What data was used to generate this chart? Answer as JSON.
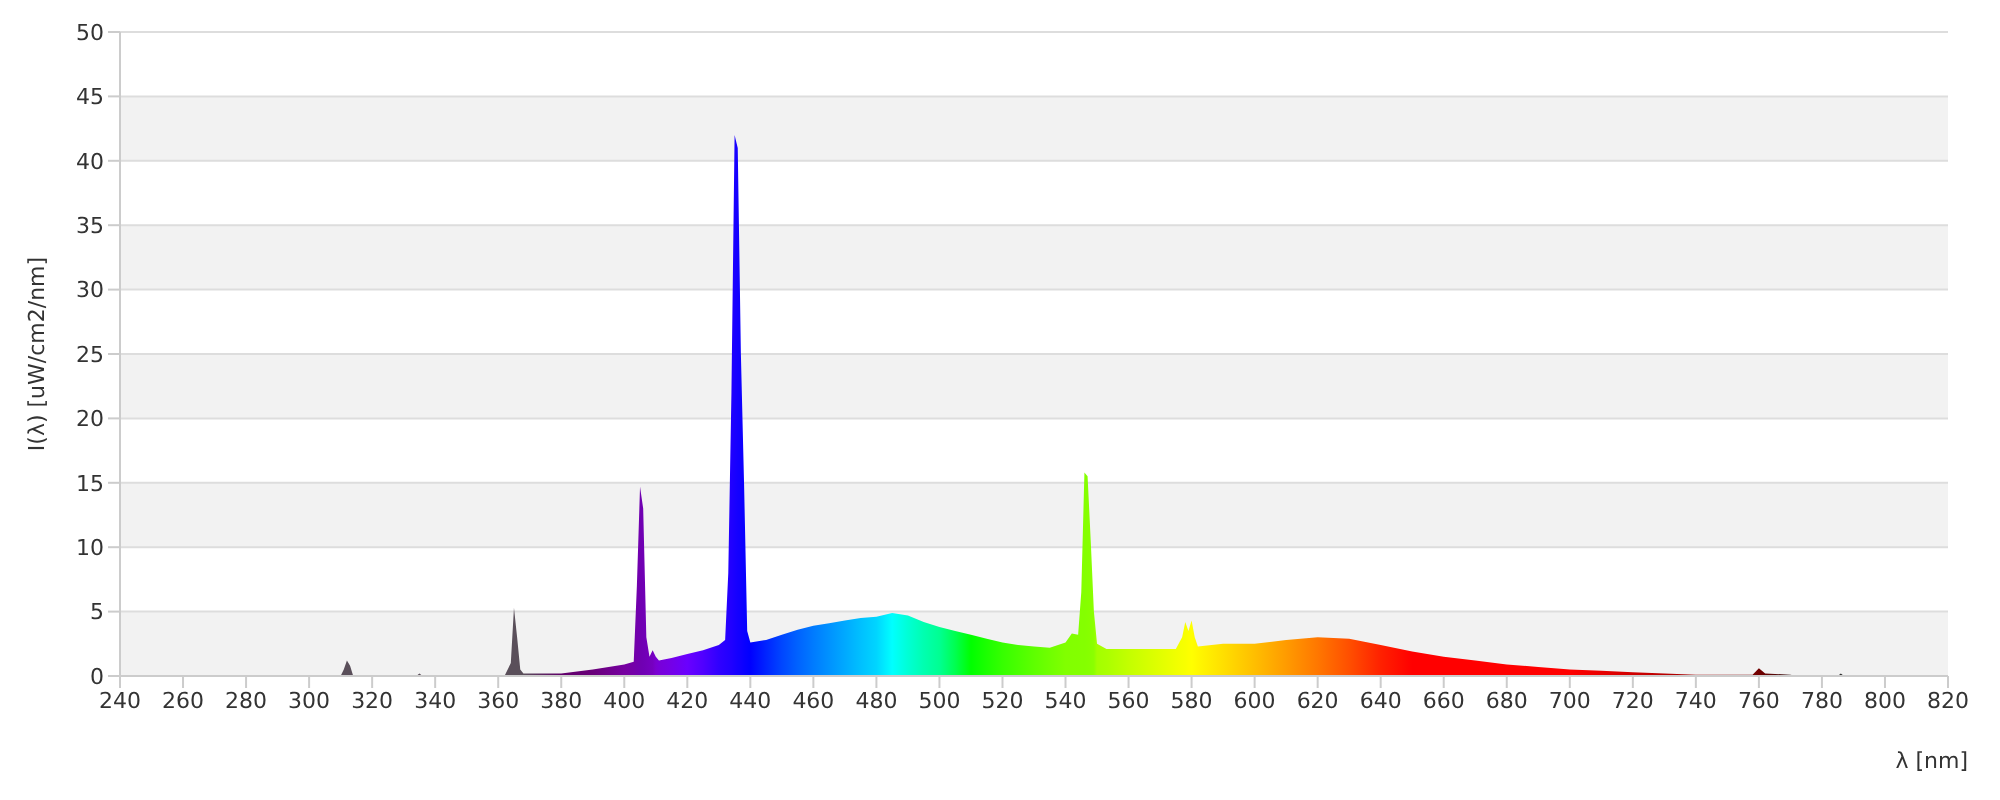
{
  "chart_data": {
    "type": "area",
    "xlabel": "λ [nm]",
    "ylabel": "I(λ)  [uW/cm2/nm]",
    "x": [
      300,
      310,
      311,
      312,
      313,
      314,
      334,
      335,
      336,
      362,
      364,
      365,
      366,
      367,
      368,
      380,
      390,
      400,
      403,
      404,
      405,
      406,
      407,
      408,
      409,
      410,
      411,
      415,
      420,
      425,
      430,
      432,
      433,
      434,
      435,
      436,
      437,
      438,
      439,
      440,
      445,
      450,
      455,
      460,
      465,
      470,
      475,
      480,
      485,
      490,
      495,
      500,
      505,
      510,
      515,
      520,
      525,
      530,
      535,
      540,
      542,
      544,
      545,
      546,
      547,
      548,
      549,
      550,
      553,
      560,
      575,
      577,
      578,
      579,
      580,
      581,
      582,
      590,
      600,
      610,
      620,
      630,
      640,
      650,
      660,
      670,
      680,
      690,
      700,
      710,
      720,
      730,
      740,
      750,
      758,
      760,
      762,
      770,
      772,
      785,
      786,
      787
    ],
    "values": [
      0,
      0,
      0.5,
      1.2,
      0.8,
      0,
      0,
      0.2,
      0,
      0,
      1,
      5.3,
      3,
      0.5,
      0.2,
      0.2,
      0.5,
      0.9,
      1.1,
      7,
      14.7,
      13,
      3,
      1.5,
      2,
      1.5,
      1.2,
      1.4,
      1.7,
      2,
      2.4,
      2.8,
      8,
      22,
      42,
      41,
      25,
      15,
      3.5,
      2.6,
      2.8,
      3.2,
      3.6,
      3.9,
      4.1,
      4.3,
      4.5,
      4.6,
      4.9,
      4.7,
      4.2,
      3.8,
      3.5,
      3.2,
      2.9,
      2.6,
      2.4,
      2.3,
      2.2,
      2.6,
      3.3,
      3.2,
      6.5,
      15.8,
      15.5,
      10.5,
      5,
      2.5,
      2.1,
      2.1,
      2.1,
      3,
      4.2,
      3.5,
      4.3,
      3,
      2.3,
      2.5,
      2.5,
      2.8,
      3,
      2.9,
      2.4,
      1.9,
      1.5,
      1.2,
      0.9,
      0.7,
      0.5,
      0.4,
      0.3,
      0.2,
      0.1,
      0.1,
      0.1,
      0.6,
      0.2,
      0.1,
      0,
      0,
      0.2,
      0
    ],
    "colors": [
      "#5a4f5a",
      "#5a4f5a",
      "#5a4f5a",
      "#5a4f5a",
      "#5a4f5a",
      "#5a4f5a",
      "#5a4f5a",
      "#5a4f5a",
      "#5a4f5a",
      "#5a4f5a",
      "#5a4f5a",
      "#5a4f5a",
      "#5a4f5a",
      "#5a4f5a",
      "#5a4f5a",
      "#61006a",
      "#690079",
      "#7600a0",
      "#7400a8",
      "#7200ac",
      "#7000b0",
      "#7000b4",
      "#7200b8",
      "#7400bc",
      "#7600c0",
      "#7a00d0",
      "#7800d8",
      "#7400e8",
      "#6a00ff",
      "#5000ff",
      "#3000ff",
      "#2800ff",
      "#2400ff",
      "#2000ff",
      "#1a00ff",
      "#1400ff",
      "#1000ff",
      "#0a00ff",
      "#0500ff",
      "#0000ff",
      "#0024ff",
      "#0046ff",
      "#0062ff",
      "#007bff",
      "#0092ff",
      "#00a9ff",
      "#00c0ff",
      "#00d5ff",
      "#00ffff",
      "#00ffd5",
      "#00ffb0",
      "#00ff92",
      "#00ff50",
      "#00ff00",
      "#1cff00",
      "#36ff00",
      "#4aff00",
      "#5eff00",
      "#70ff00",
      "#81ff00",
      "#82ff00",
      "#83ff00",
      "#84ff00",
      "#84ff00",
      "#86ff00",
      "#88ff00",
      "#8cff00",
      "#a3ff00",
      "#aaff00",
      "#c3ff00",
      "#f0ff00",
      "#f6ff00",
      "#f8ff00",
      "#fcff00",
      "#ffff00",
      "#fffc00",
      "#fff800",
      "#ffdf00",
      "#ffbe00",
      "#ff9b00",
      "#ff7700",
      "#ff4f00",
      "#ff2100",
      "#ff0000",
      "#ff0000",
      "#ff0000",
      "#ff0000",
      "#ff0000",
      "#ff0000",
      "#e80000",
      "#d00000",
      "#b80000",
      "#a00000",
      "#880000",
      "#780000",
      "#700000",
      "#680000",
      "#3a1a1a",
      "#303030",
      "#303030",
      "#303030",
      "#303030"
    ],
    "xlim": [
      240,
      820
    ],
    "xticks": [
      240,
      260,
      280,
      300,
      320,
      340,
      360,
      380,
      400,
      420,
      440,
      460,
      480,
      500,
      520,
      540,
      560,
      580,
      600,
      620,
      640,
      660,
      680,
      700,
      720,
      740,
      760,
      780,
      800,
      820
    ],
    "ylim": [
      0,
      50
    ],
    "yticks": [
      0,
      5,
      10,
      15,
      20,
      25,
      30,
      35,
      40,
      45,
      50
    ],
    "grid": "y"
  }
}
